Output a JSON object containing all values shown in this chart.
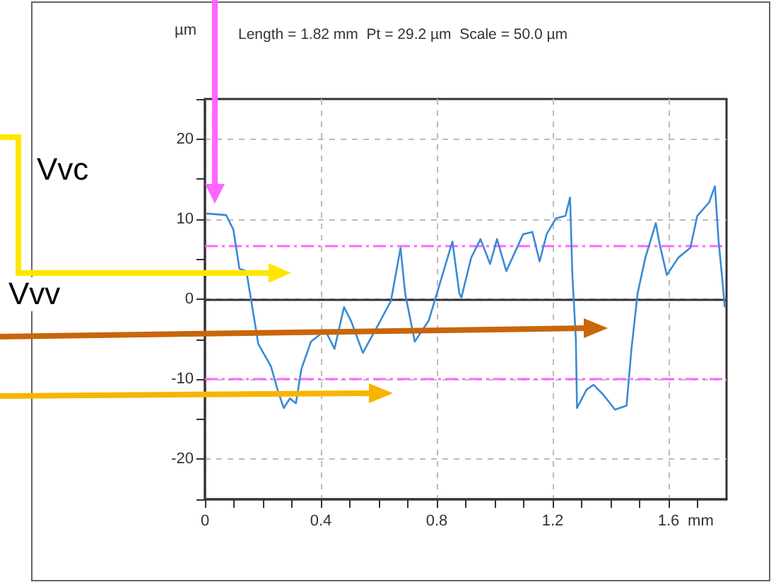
{
  "chart_data": {
    "type": "line",
    "title": "Length = 1.82 mm  Pt = 29.2 µm  Scale = 50.0 µm",
    "xlabel": "mm",
    "ylabel": "µm",
    "annotations": [
      "Vvc",
      "Vvv"
    ],
    "x": [
      0.005,
      0.073,
      0.098,
      0.119,
      0.143,
      0.171,
      0.184,
      0.228,
      0.252,
      0.272,
      0.293,
      0.314,
      0.333,
      0.366,
      0.415,
      0.447,
      0.48,
      0.504,
      0.545,
      0.601,
      0.642,
      0.675,
      0.691,
      0.724,
      0.772,
      0.821,
      0.854,
      0.878,
      0.885,
      0.919,
      0.951,
      0.984,
      1.008,
      1.04,
      1.098,
      1.13,
      1.155,
      1.179,
      1.211,
      1.244,
      1.26,
      1.268,
      1.28,
      1.284,
      1.317,
      1.341,
      1.374,
      1.415,
      1.455,
      1.472,
      1.493,
      1.52,
      1.556,
      1.569,
      1.594,
      1.634,
      1.675,
      1.699,
      1.74,
      1.76,
      1.772,
      1.784,
      1.794
    ],
    "series": [
      {
        "color": "#3a8ad6",
        "values": [
          10.7,
          10.5,
          8.7,
          3.8,
          3.5,
          -2.7,
          -5.6,
          -8.4,
          -11.5,
          -13.6,
          -12.4,
          -13.0,
          -8.7,
          -5.3,
          -3.9,
          -6.2,
          -1.0,
          -2.7,
          -6.7,
          -3.0,
          -0.2,
          6.4,
          0.7,
          -5.3,
          -2.7,
          3.2,
          7.2,
          0.7,
          0.2,
          5.2,
          7.5,
          4.4,
          7.5,
          3.5,
          8.1,
          8.4,
          4.7,
          8.1,
          10.1,
          10.4,
          12.7,
          3.0,
          -5.0,
          -13.6,
          -11.3,
          -10.7,
          -11.9,
          -13.8,
          -13.3,
          -6.2,
          0.7,
          5.2,
          9.5,
          6.9,
          3.0,
          5.2,
          6.4,
          10.4,
          12.1,
          14.1,
          7.5,
          3.0,
          -1.0
        ]
      }
    ],
    "xlim": [
      0,
      1.8
    ],
    "xticks": [
      0,
      {
        "value": 0.1,
        "label": null
      },
      {
        "value": 0.2,
        "label": null
      },
      {
        "value": 0.3,
        "label": null
      },
      0.4,
      {
        "value": 0.5,
        "label": null
      },
      {
        "value": 0.6,
        "label": null
      },
      {
        "value": 0.7,
        "label": null
      },
      0.8,
      {
        "value": 0.9,
        "label": null
      },
      {
        "value": 1.0,
        "label": null
      },
      {
        "value": 1.1,
        "label": null
      },
      1.2,
      {
        "value": 1.3,
        "label": null
      },
      {
        "value": 1.4,
        "label": null
      },
      {
        "value": 1.5,
        "label": null
      },
      1.6,
      {
        "value": 1.7,
        "label": null
      }
    ],
    "ylim": [
      -25,
      25
    ],
    "yticks": [
      {
        "value": -25,
        "label": null
      },
      -20,
      {
        "value": -15,
        "label": null
      },
      -10,
      {
        "value": -5,
        "label": null
      },
      0,
      {
        "value": 5,
        "label": null
      },
      10,
      {
        "value": 15,
        "label": null
      },
      20,
      {
        "value": 25,
        "label": null
      }
    ],
    "ref_lines": [
      {
        "axis": "y",
        "value": 6.7,
        "color": "#ff66ff",
        "line_style": "dashed"
      },
      {
        "axis": "y",
        "value": -10,
        "color": "#ff66ff",
        "line_style": "dashed"
      },
      {
        "axis": "y",
        "value": 0,
        "color": "#333333",
        "line_style": "solid"
      }
    ],
    "grid": true,
    "line_style": "solid",
    "marker": "none"
  }
}
